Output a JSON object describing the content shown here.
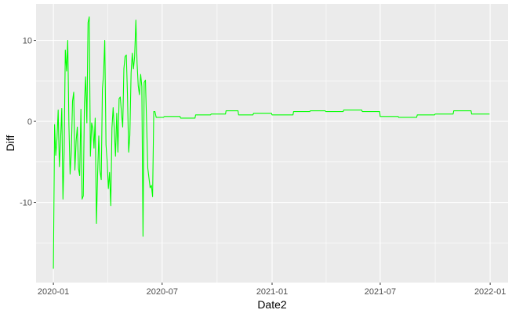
{
  "chart_data": {
    "type": "line",
    "title": "",
    "xlabel": "Date2",
    "ylabel": "Diff",
    "x_tick_labels": [
      "2020-01",
      "2020-07",
      "2021-01",
      "2021-07",
      "2022-01"
    ],
    "y_tick_labels": [
      "10",
      "0",
      "-10"
    ],
    "x_ticks": [
      "2020-01-01",
      "2020-07-01",
      "2021-01-01",
      "2021-07-01",
      "2022-01-01"
    ],
    "y_ticks": [
      10,
      0,
      -10
    ],
    "xlim": [
      "2019-12-03",
      "2022-01-31"
    ],
    "ylim": [
      -19.9,
      14.5
    ],
    "grid": true,
    "series": [
      {
        "color": "#00ff00",
        "x": [
          "2020-01-01",
          "2020-01-03",
          "2020-01-05",
          "2020-01-07",
          "2020-01-09",
          "2020-01-11",
          "2020-01-13",
          "2020-01-15",
          "2020-01-17",
          "2020-01-19",
          "2020-01-21",
          "2020-01-23",
          "2020-01-25",
          "2020-01-27",
          "2020-01-29",
          "2020-01-31",
          "2020-02-02",
          "2020-02-04",
          "2020-02-06",
          "2020-02-08",
          "2020-02-10",
          "2020-02-12",
          "2020-02-14",
          "2020-02-16",
          "2020-02-18",
          "2020-02-20",
          "2020-02-22",
          "2020-02-24",
          "2020-02-26",
          "2020-02-28",
          "2020-03-01",
          "2020-03-03",
          "2020-03-05",
          "2020-03-07",
          "2020-03-09",
          "2020-03-11",
          "2020-03-13",
          "2020-03-15",
          "2020-03-17",
          "2020-03-19",
          "2020-03-21",
          "2020-03-23",
          "2020-03-25",
          "2020-03-27",
          "2020-03-29",
          "2020-03-31",
          "2020-04-02",
          "2020-04-04",
          "2020-04-06",
          "2020-04-08",
          "2020-04-10",
          "2020-04-12",
          "2020-04-14",
          "2020-04-16",
          "2020-04-18",
          "2020-04-20",
          "2020-04-22",
          "2020-04-24",
          "2020-04-26",
          "2020-04-28",
          "2020-04-30",
          "2020-05-02",
          "2020-05-04",
          "2020-05-06",
          "2020-05-08",
          "2020-05-10",
          "2020-05-12",
          "2020-05-14",
          "2020-05-16",
          "2020-05-18",
          "2020-05-20",
          "2020-05-22",
          "2020-05-24",
          "2020-05-26",
          "2020-05-28",
          "2020-05-30",
          "2020-06-01",
          "2020-06-03",
          "2020-06-05",
          "2020-06-07",
          "2020-06-09",
          "2020-06-11",
          "2020-06-13",
          "2020-06-15",
          "2020-06-17",
          "2020-06-19",
          "2020-06-21",
          "2020-06-23",
          "2020-06-25",
          "2020-06-27",
          "2020-06-29",
          "2020-07-01",
          "2020-07-03",
          "2020-07-05",
          "2020-07-31",
          "2020-08-01",
          "2020-08-25",
          "2020-08-26",
          "2020-09-20",
          "2020-09-21",
          "2020-10-15",
          "2020-10-16",
          "2020-11-05",
          "2020-11-06",
          "2020-11-30",
          "2020-12-01",
          "2020-12-31",
          "2021-01-01",
          "2021-02-05",
          "2021-02-06",
          "2021-03-05",
          "2021-03-06",
          "2021-03-31",
          "2021-04-01",
          "2021-04-30",
          "2021-05-01",
          "2021-05-31",
          "2021-06-01",
          "2021-06-30",
          "2021-07-01",
          "2021-07-31",
          "2021-08-01",
          "2021-08-31",
          "2021-09-01",
          "2021-09-30",
          "2021-10-01",
          "2021-10-31",
          "2021-11-01",
          "2021-11-30",
          "2021-12-01",
          "2021-12-31"
        ],
        "y": [
          -18.2,
          -0.4,
          -4.2,
          -2.1,
          1.4,
          -5.6,
          -2.4,
          1.6,
          -9.6,
          -3.8,
          8.8,
          6.2,
          10.0,
          -0.5,
          -6.5,
          -3.6,
          2.5,
          3.6,
          -6.0,
          -2.4,
          -0.7,
          -5.8,
          -6.7,
          1.5,
          -9.6,
          -9.2,
          2.3,
          5.5,
          -0.2,
          12.2,
          12.9,
          -4.3,
          -0.2,
          -0.9,
          -3.3,
          0.4,
          -12.6,
          -6.5,
          -1.8,
          -6.1,
          -7.2,
          4.0,
          5.8,
          10.0,
          -2.9,
          -4.9,
          -8.3,
          -6.3,
          -10.4,
          -0.8,
          1.7,
          -1.1,
          -4.3,
          1.0,
          -3.8,
          2.8,
          3.0,
          1.0,
          -0.7,
          6.5,
          8.0,
          8.2,
          3.2,
          -3.8,
          -1.7,
          6.0,
          8.4,
          6.5,
          8.0,
          12.5,
          7.2,
          4.4,
          3.3,
          5.8,
          4.3,
          -14.2,
          4.8,
          5.1,
          -0.3,
          -5.8,
          -7.0,
          -8.2,
          -7.9,
          -9.3,
          1.2,
          1.2,
          0.5,
          0.5,
          0.5,
          0.5,
          0.5,
          0.5,
          0.5,
          0.6,
          0.6,
          0.4,
          0.4,
          0.8,
          0.8,
          0.9,
          0.9,
          1.3,
          1.3,
          0.8,
          0.8,
          1.0,
          1.0,
          0.8,
          0.8,
          1.2,
          1.2,
          1.3,
          1.3,
          1.2,
          1.2,
          1.4,
          1.4,
          1.2,
          1.2,
          0.6,
          0.6,
          0.5,
          0.5,
          0.8,
          0.8,
          0.9,
          0.9,
          1.3,
          1.3,
          0.9,
          0.9
        ]
      }
    ]
  }
}
